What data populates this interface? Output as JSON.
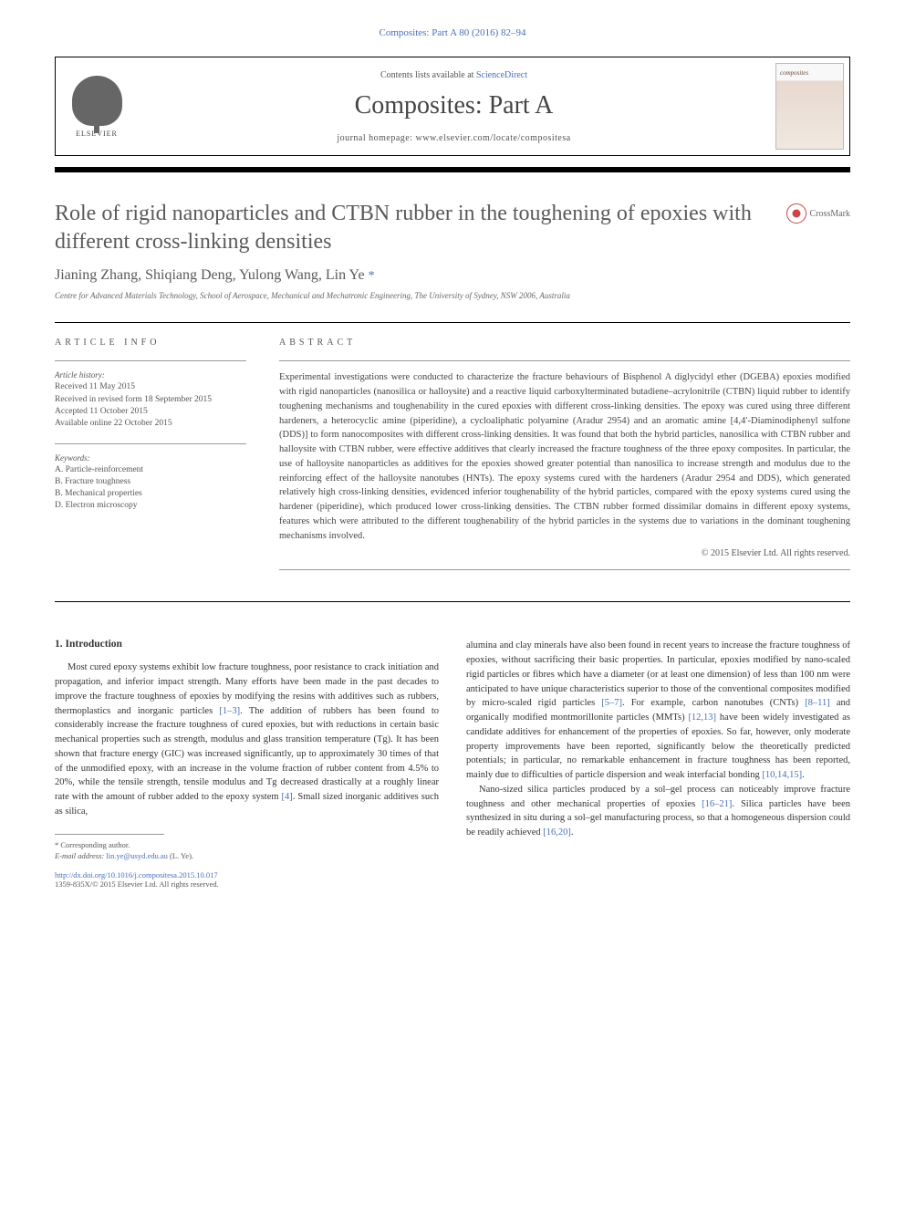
{
  "citation": "Composites: Part A 80 (2016) 82–94",
  "header": {
    "publisher": "ELSEVIER",
    "contents_prefix": "Contents lists available at ",
    "contents_link": "ScienceDirect",
    "journal_name": "Composites: Part A",
    "homepage_prefix": "journal homepage: ",
    "homepage_url": "www.elsevier.com/locate/compositesa",
    "cover_label": "composites"
  },
  "crossmark": "CrossMark",
  "title": "Role of rigid nanoparticles and CTBN rubber in the toughening of epoxies with different cross-linking densities",
  "authors": "Jianing Zhang, Shiqiang Deng, Yulong Wang, Lin Ye",
  "corr_symbol": "*",
  "affiliation": "Centre for Advanced Materials Technology, School of Aerospace, Mechanical and Mechatronic Engineering, The University of Sydney, NSW 2006, Australia",
  "article_info": {
    "heading": "ARTICLE INFO",
    "history_label": "Article history:",
    "received": "Received 11 May 2015",
    "revised": "Received in revised form 18 September 2015",
    "accepted": "Accepted 11 October 2015",
    "online": "Available online 22 October 2015",
    "keywords_label": "Keywords:",
    "kw1": "A. Particle-reinforcement",
    "kw2": "B. Fracture toughness",
    "kw3": "B. Mechanical properties",
    "kw4": "D. Electron microscopy"
  },
  "abstract": {
    "heading": "ABSTRACT",
    "text": "Experimental investigations were conducted to characterize the fracture behaviours of Bisphenol A diglycidyl ether (DGEBA) epoxies modified with rigid nanoparticles (nanosilica or halloysite) and a reactive liquid carboxylterminated butadiene–acrylonitrile (CTBN) liquid rubber to identify toughening mechanisms and toughenability in the cured epoxies with different cross-linking densities. The epoxy was cured using three different hardeners, a heterocyclic amine (piperidine), a cycloaliphatic polyamine (Aradur 2954) and an aromatic amine [4,4′-Diaminodiphenyl sulfone (DDS)] to form nanocomposites with different cross-linking densities. It was found that both the hybrid particles, nanosilica with CTBN rubber and halloysite with CTBN rubber, were effective additives that clearly increased the fracture toughness of the three epoxy composites. In particular, the use of halloysite nanoparticles as additives for the epoxies showed greater potential than nanosilica to increase strength and modulus due to the reinforcing effect of the halloysite nanotubes (HNTs). The epoxy systems cured with the hardeners (Aradur 2954 and DDS), which generated relatively high cross-linking densities, evidenced inferior toughenability of the hybrid particles, compared with the epoxy systems cured using the hardener (piperidine), which produced lower cross-linking densities. The CTBN rubber formed dissimilar domains in different epoxy systems, features which were attributed to the different toughenability of the hybrid particles in the systems due to variations in the dominant toughening mechanisms involved.",
    "copyright": "© 2015 Elsevier Ltd. All rights reserved."
  },
  "intro": {
    "heading": "1. Introduction",
    "p1a": "Most cured epoxy systems exhibit low fracture toughness, poor resistance to crack initiation and propagation, and inferior impact strength. Many efforts have been made in the past decades to improve the fracture toughness of epoxies by modifying the resins with additives such as rubbers, thermoplastics and inorganic particles ",
    "ref1": "[1–3]",
    "p1b": ". The addition of rubbers has been found to considerably increase the fracture toughness of cured epoxies, but with reductions in certain basic mechanical properties such as strength, modulus and glass transition temperature (Tg). It has been shown that fracture energy (GIC) was increased significantly, up to approximately 30 times of that of the unmodified epoxy, with an increase in the volume fraction of rubber content from 4.5% to 20%, while the tensile strength, tensile modulus and Tg decreased drastically at a roughly linear rate with the amount of rubber added to the epoxy system ",
    "ref4": "[4]",
    "p1c": ". Small sized inorganic additives such as silica, ",
    "p2a": "alumina and clay minerals have also been found in recent years to increase the fracture toughness of epoxies, without sacrificing their basic properties. In particular, epoxies modified by nano-scaled rigid particles or fibres which have a diameter (or at least one dimension) of less than 100 nm were anticipated to have unique characteristics superior to those of the conventional composites modified by micro-scaled rigid particles ",
    "ref5": "[5–7]",
    "p2b": ". For example, carbon nanotubes (CNTs) ",
    "ref8": "[8–11]",
    "p2c": " and organically modified montmorillonite particles (MMTs) ",
    "ref12": "[12,13]",
    "p2d": " have been widely investigated as candidate additives for enhancement of the properties of epoxies. So far, however, only moderate property improvements have been reported, significantly below the theoretically predicted potentials; in particular, no remarkable enhancement in fracture toughness has been reported, mainly due to difficulties of particle dispersion and weak interfacial bonding ",
    "ref10": "[10,14,15]",
    "p2e": ".",
    "p3a": "Nano-sized silica particles produced by a sol–gel process can noticeably improve fracture toughness and other mechanical properties of epoxies ",
    "ref16": "[16–21]",
    "p3b": ". Silica particles have been synthesized in situ during a sol–gel manufacturing process, so that a homogeneous dispersion could be readily achieved ",
    "ref1620": "[16,20]",
    "p3c": "."
  },
  "footnote": {
    "corr_label": "* Corresponding author.",
    "email_label": "E-mail address: ",
    "email": "lin.ye@usyd.edu.au",
    "email_suffix": " (L. Ye)."
  },
  "footer": {
    "doi": "http://dx.doi.org/10.1016/j.compositesa.2015.10.017",
    "issn": "1359-835X/© 2015 Elsevier Ltd. All rights reserved."
  }
}
